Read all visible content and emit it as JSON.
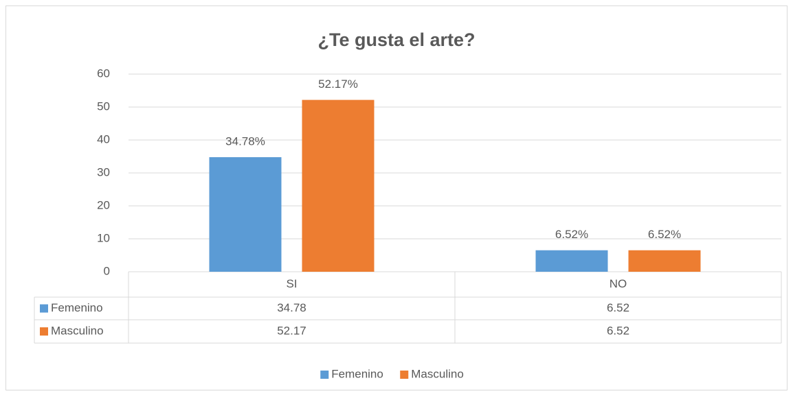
{
  "chart_data": {
    "type": "bar",
    "title": "¿Te gusta el arte?",
    "categories": [
      "SI",
      "NO"
    ],
    "series": [
      {
        "name": "Femenino",
        "color": "#5b9bd5",
        "values": [
          34.78,
          6.52
        ],
        "value_labels": [
          "34.78%",
          "6.52%"
        ]
      },
      {
        "name": "Masculino",
        "color": "#ed7d31",
        "values": [
          52.17,
          6.52
        ],
        "value_labels": [
          "52.17%",
          "6.52%"
        ]
      }
    ],
    "ylim": [
      0,
      60
    ],
    "yticks": [
      0,
      10,
      20,
      30,
      40,
      50,
      60
    ],
    "grid": true,
    "legend": "bottom",
    "data_table": true
  }
}
